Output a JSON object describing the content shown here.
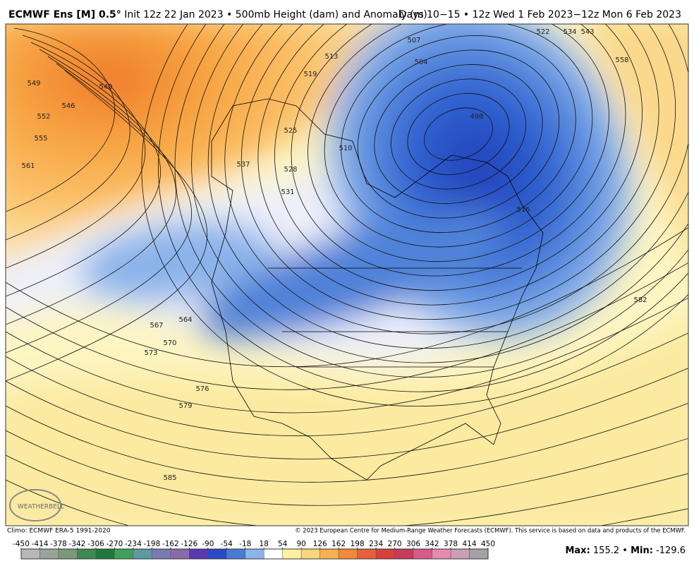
{
  "header": {
    "model": "ECMWF Ens [M] 0.5°",
    "init": "Init 12z 22 Jan 2023 • 500mb Height (dam) and Anomaly (m)",
    "valid": "Days 10−15 • 12z Wed 1 Feb 2023−12z Mon 6 Feb 2023"
  },
  "map": {
    "contour_labels": [
      540,
      549,
      546,
      552,
      555,
      561,
      513,
      519,
      507,
      504,
      522,
      534,
      543,
      558,
      498,
      525,
      510,
      528,
      531,
      537,
      516,
      564,
      567,
      570,
      573,
      576,
      579,
      582,
      585
    ],
    "branding": "WEATHERBELL"
  },
  "footer": {
    "climo": "Climo: ECMWF ERA-5 1991-2020",
    "copyright": "© 2023 European Centre for Medium-Range Weather Forecasts (ECMWF). This service is based on data and products of the ECMWF."
  },
  "colorbar": {
    "ticks": [
      -450,
      -414,
      -378,
      -342,
      -306,
      -270,
      -234,
      -198,
      -162,
      -126,
      -90,
      -54,
      -18,
      18,
      54,
      90,
      126,
      162,
      198,
      234,
      270,
      306,
      342,
      378,
      414,
      450
    ],
    "colors": [
      "#b8b8b8",
      "#9aa39a",
      "#7a9a7a",
      "#3f8a4e",
      "#1f7a3a",
      "#3fa05a",
      "#5a9aa0",
      "#7a7ab0",
      "#8a6aa8",
      "#5a3ab0",
      "#2a4ac8",
      "#4a7ad8",
      "#8ab4ea",
      "#ffffff",
      "#fdf0a0",
      "#fad57a",
      "#f8b052",
      "#f28a3a",
      "#e8603a",
      "#d8403a",
      "#c83a5a",
      "#d85a8a",
      "#e88ab0",
      "#c8a0b8",
      "#a8a0a8"
    ]
  },
  "stats": {
    "max_label": "Max:",
    "max": 155.2,
    "separator": "•",
    "min_label": "Min:",
    "min": -129.6
  }
}
